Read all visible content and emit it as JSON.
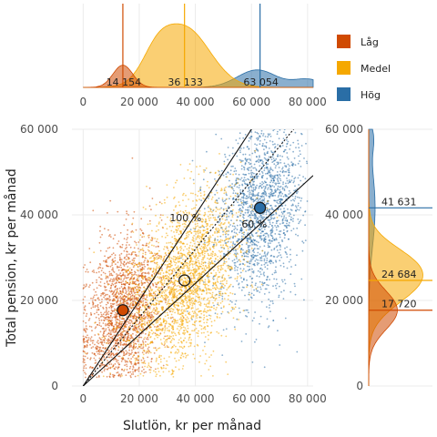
{
  "chart_data": {
    "type": "scatter",
    "xlabel": "Slutlön, kr per månad",
    "ylabel": "Total pension, kr per månad",
    "xlim": [
      -4000,
      82000
    ],
    "ylim": [
      0,
      60000
    ],
    "x_ticks": [
      0,
      20000,
      40000,
      60000,
      80000
    ],
    "x_tick_labels": [
      "0",
      "20 000",
      "40 000",
      "60 000",
      "80 000"
    ],
    "y_ticks": [
      0,
      20000,
      40000,
      60000
    ],
    "y_tick_labels": [
      "0",
      "20 000",
      "40 000",
      "60 000"
    ],
    "grid": true,
    "legend_position": "top-right",
    "colors": {
      "Låg": "#d04a02",
      "Medel": "#f5a800",
      "Hög": "#2a6ea6"
    },
    "series": [
      {
        "name": "Låg",
        "color": "#d04a02",
        "mean_x": 14154,
        "mean_y": 17720,
        "density_x_peak": 14154
      },
      {
        "name": "Medel",
        "color": "#f5a800",
        "mean_x": 36133,
        "mean_y": 24684,
        "density_x_peak": 36133
      },
      {
        "name": "Hög",
        "color": "#2a6ea6",
        "mean_x": 63054,
        "mean_y": 41631,
        "density_x_peak": 63054
      }
    ],
    "reference_lines": [
      {
        "label": "100 %",
        "slope": 1.0,
        "style": "solid"
      },
      {
        "label": "",
        "slope": 0.8,
        "style": "dotted"
      },
      {
        "label": "60 %",
        "slope": 0.6,
        "style": "solid"
      }
    ],
    "top_annotations": [
      "14 154",
      "36 133",
      "63 054"
    ],
    "right_annotations": [
      "41 631",
      "24 684",
      "17 720"
    ]
  }
}
